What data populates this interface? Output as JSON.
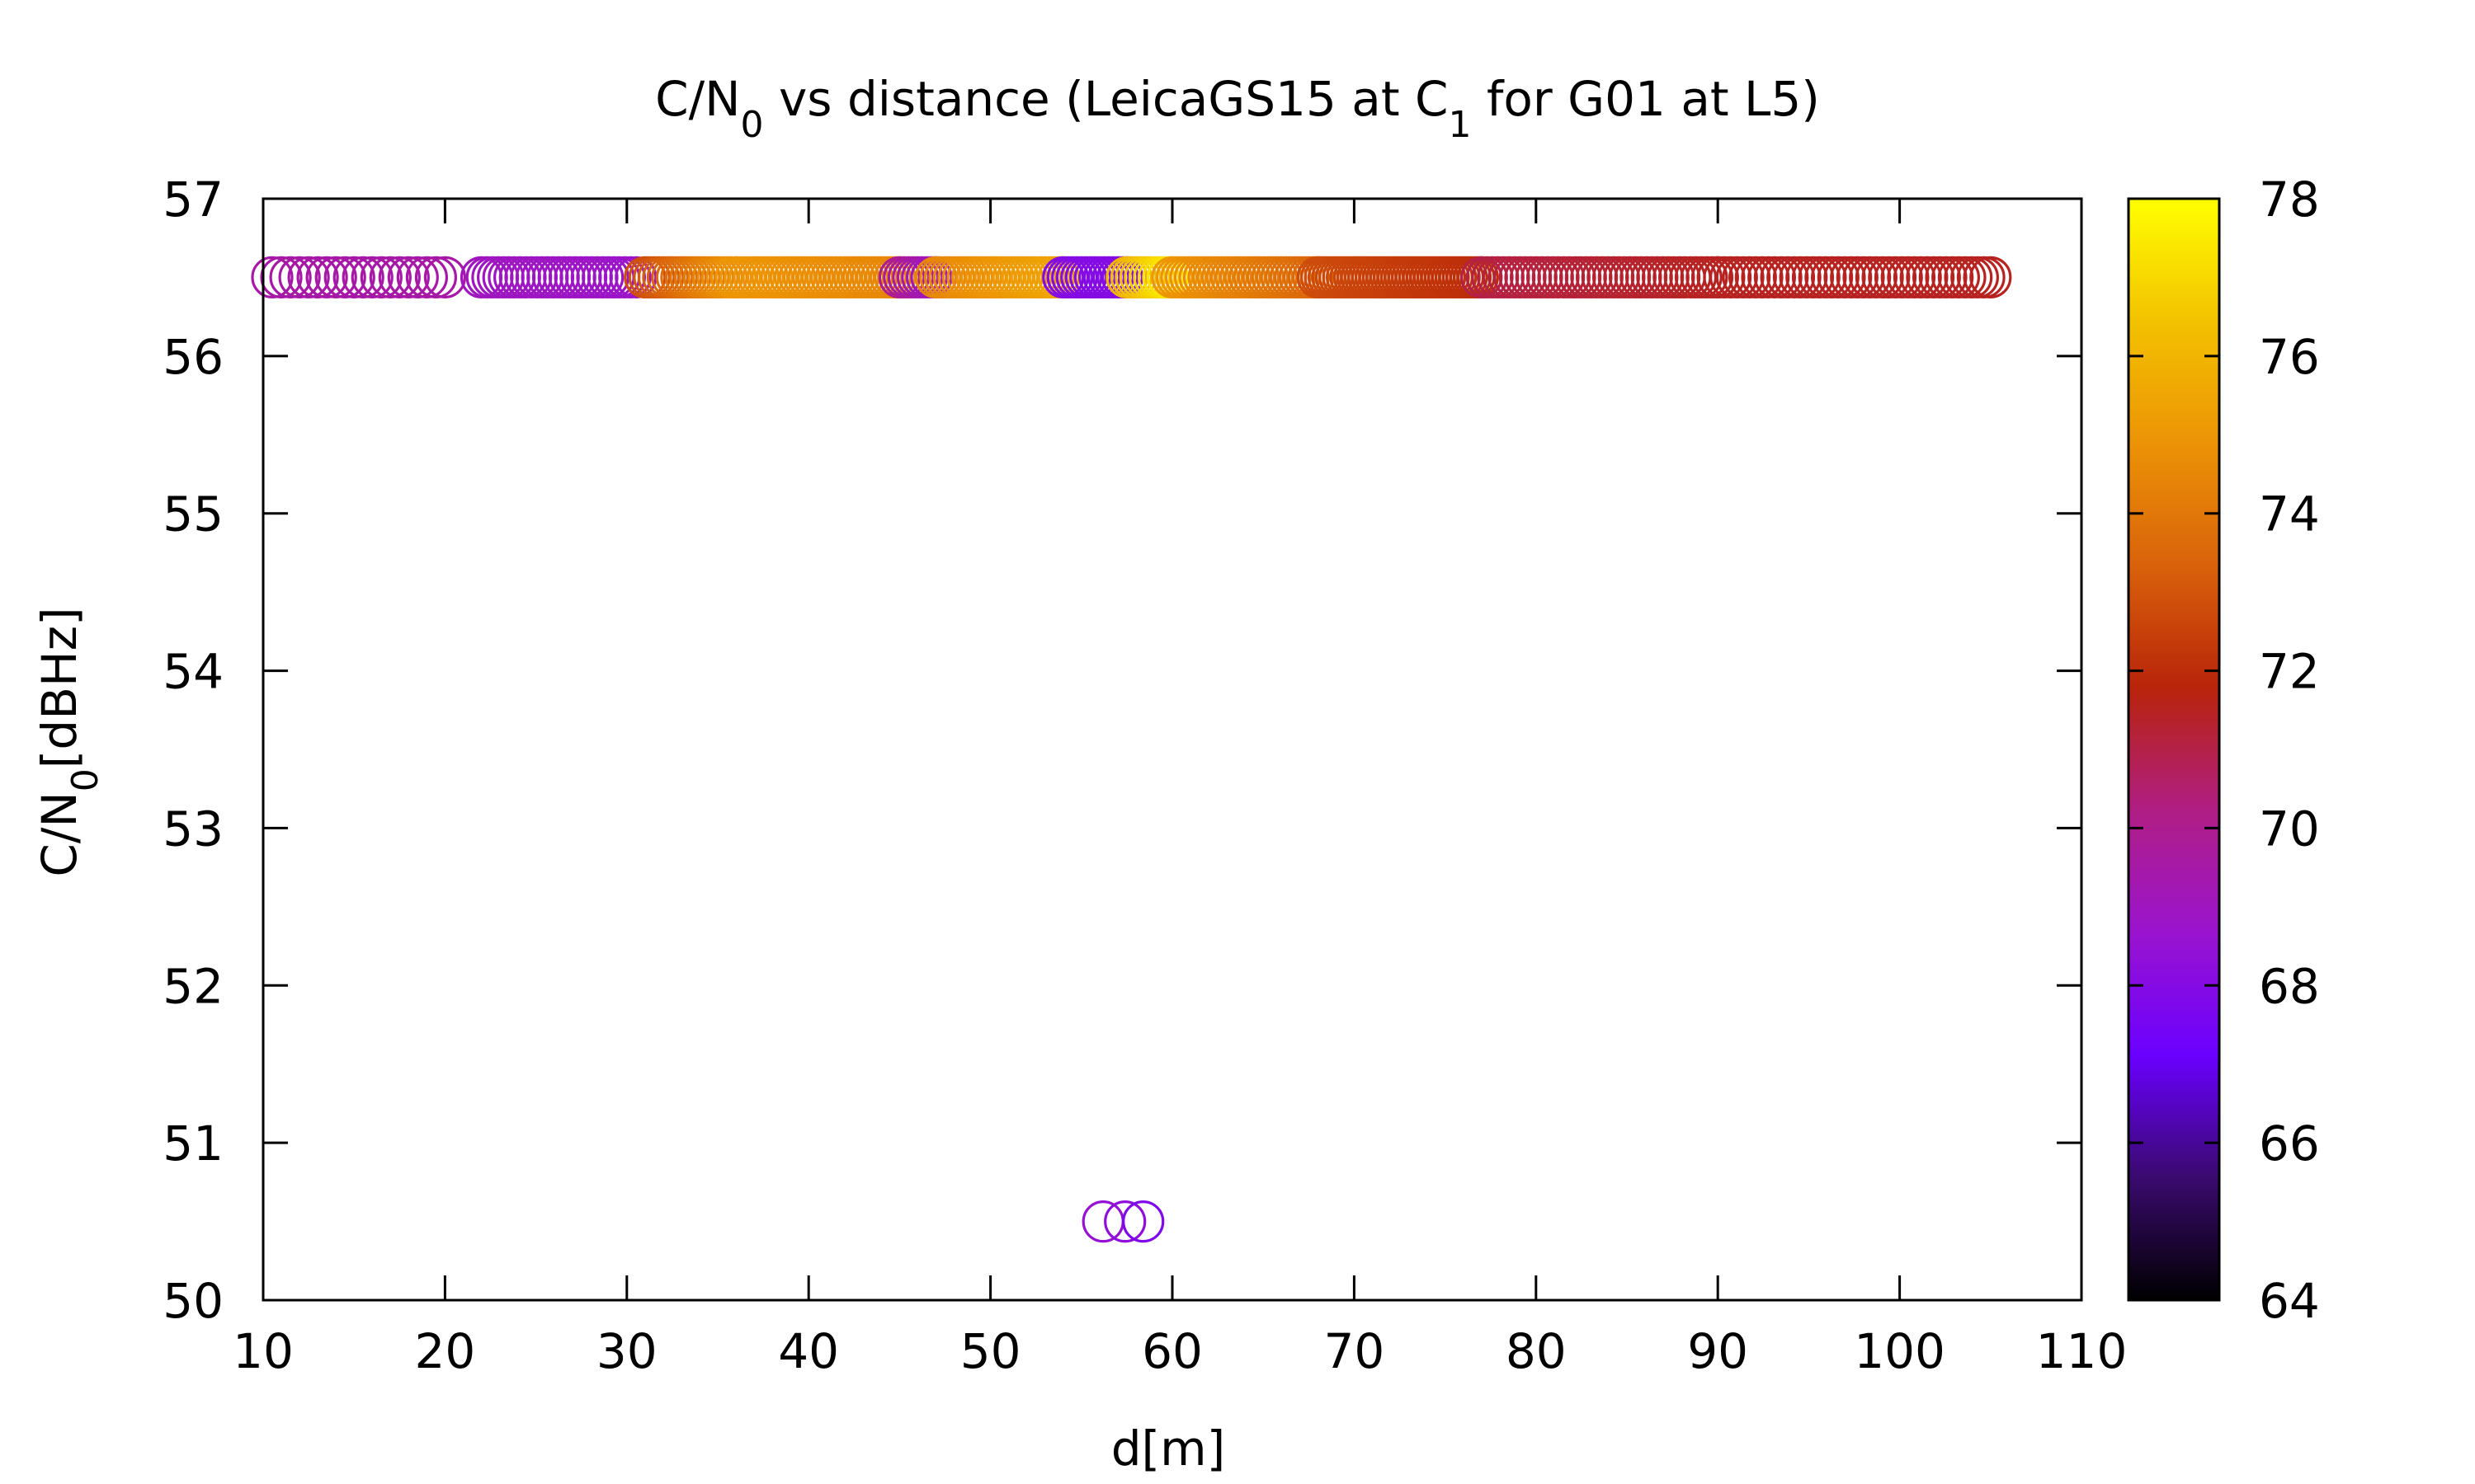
{
  "chart_data": {
    "type": "scatter",
    "title": {
      "parts": [
        {
          "text": "C/N",
          "sub": false
        },
        {
          "text": "0",
          "sub": true
        },
        {
          "text": " vs distance (LeicaGS15 at C",
          "sub": false
        },
        {
          "text": "1",
          "sub": true
        },
        {
          "text": " for G01 at L5)",
          "sub": false
        }
      ]
    },
    "xlabel": "d[m]",
    "ylabel": {
      "parts": [
        {
          "text": "C/N",
          "sub": false
        },
        {
          "text": "0",
          "sub": true
        },
        {
          "text": "[dBHz]",
          "sub": false
        }
      ]
    },
    "xlim": [
      10,
      110
    ],
    "ylim": [
      50,
      57
    ],
    "x_ticks": [
      "10",
      "20",
      "30",
      "40",
      "50",
      "60",
      "70",
      "80",
      "90",
      "100",
      "110"
    ],
    "y_ticks": [
      "50",
      "51",
      "52",
      "53",
      "54",
      "55",
      "56",
      "57"
    ],
    "grid": false,
    "marker": "open-circle",
    "colorbar": {
      "range": [
        64,
        78
      ],
      "ticks": [
        "64",
        "66",
        "68",
        "70",
        "72",
        "74",
        "76",
        "78"
      ],
      "palette": [
        "#000000",
        "#3a0a6e",
        "#6a00ff",
        "#9a14cf",
        "#b01e84",
        "#b8240a",
        "#d9620b",
        "#ec9306",
        "#f3c200",
        "#ffff00"
      ]
    },
    "series": [
      {
        "segments": [
          {
            "x_from": 10.5,
            "x_to": 20.0,
            "step": 0.5,
            "y": 56.5,
            "c_from": 69.5,
            "c_to": 69.5
          },
          {
            "x_from": 22.0,
            "x_to": 30.5,
            "step": 0.3,
            "y": 56.5,
            "c_from": 69.0,
            "c_to": 68.8
          },
          {
            "x_from": 31.0,
            "x_to": 36.0,
            "step": 0.25,
            "y": 56.5,
            "c_from": 72.8,
            "c_to": 75.0
          },
          {
            "x_from": 36.0,
            "x_to": 45.0,
            "step": 0.25,
            "y": 56.5,
            "c_from": 75.0,
            "c_to": 74.5
          },
          {
            "x_from": 45.0,
            "x_to": 47.0,
            "step": 0.25,
            "y": 56.5,
            "c_from": 70.0,
            "c_to": 69.0
          },
          {
            "x_from": 47.0,
            "x_to": 54.0,
            "step": 0.25,
            "y": 56.5,
            "c_from": 74.5,
            "c_to": 75.5
          },
          {
            "x_from": 54.0,
            "x_to": 57.5,
            "step": 0.25,
            "y": 56.5,
            "c_from": 68.0,
            "c_to": 68.0
          },
          {
            "x_from": 57.5,
            "x_to": 60.0,
            "step": 0.25,
            "y": 56.5,
            "c_from": 76.0,
            "c_to": 77.5
          },
          {
            "x_from": 60.0,
            "x_to": 68.0,
            "step": 0.25,
            "y": 56.5,
            "c_from": 75.0,
            "c_to": 73.5
          },
          {
            "x_from": 68.0,
            "x_to": 77.0,
            "step": 0.2,
            "y": 56.5,
            "c_from": 72.8,
            "c_to": 72.0
          },
          {
            "x_from": 77.0,
            "x_to": 90.0,
            "step": 0.3,
            "y": 56.5,
            "c_from": 71.0,
            "c_to": 71.5
          },
          {
            "x_from": 90.0,
            "x_to": 105.0,
            "step": 0.35,
            "y": 56.5,
            "c_from": 71.5,
            "c_to": 71.5
          }
        ],
        "points": [
          {
            "x": 56.2,
            "y": 50.5,
            "c": 68.5
          },
          {
            "x": 57.4,
            "y": 50.5,
            "c": 68.3
          },
          {
            "x": 58.4,
            "y": 50.5,
            "c": 67.8
          }
        ]
      }
    ]
  }
}
